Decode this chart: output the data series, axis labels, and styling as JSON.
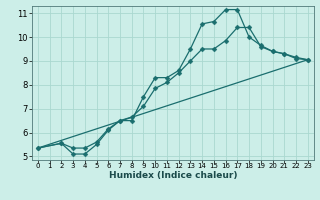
{
  "xlabel": "Humidex (Indice chaleur)",
  "background_color": "#cceee8",
  "grid_color": "#aad8d0",
  "line_color": "#1a6e6e",
  "xlim": [
    -0.5,
    23.5
  ],
  "ylim": [
    4.85,
    11.3
  ],
  "xticks": [
    0,
    1,
    2,
    3,
    4,
    5,
    6,
    7,
    8,
    9,
    10,
    11,
    12,
    13,
    14,
    15,
    16,
    17,
    18,
    19,
    20,
    21,
    22,
    23
  ],
  "yticks": [
    5,
    6,
    7,
    8,
    9,
    10,
    11
  ],
  "curve1_x": [
    0,
    2,
    3,
    4,
    5,
    6,
    7,
    8,
    9,
    10,
    11,
    12,
    13,
    14,
    15,
    16,
    17,
    18,
    19,
    20,
    21,
    22,
    23
  ],
  "curve1_y": [
    5.35,
    5.55,
    5.1,
    5.1,
    5.5,
    6.1,
    6.5,
    6.5,
    7.5,
    8.3,
    8.3,
    8.6,
    9.5,
    10.55,
    10.65,
    11.15,
    11.15,
    10.0,
    9.65,
    9.4,
    9.3,
    9.1,
    9.05
  ],
  "curve2_x": [
    0,
    2,
    3,
    4,
    5,
    6,
    7,
    8,
    9,
    10,
    11,
    12,
    13,
    14,
    15,
    16,
    17,
    18,
    19,
    20,
    21,
    22,
    23
  ],
  "curve2_y": [
    5.35,
    5.55,
    5.35,
    5.35,
    5.6,
    6.15,
    6.5,
    6.65,
    7.1,
    7.85,
    8.1,
    8.5,
    9.0,
    9.5,
    9.5,
    9.85,
    10.4,
    10.4,
    9.6,
    9.4,
    9.3,
    9.15,
    9.05
  ],
  "curve3_x": [
    0,
    23
  ],
  "curve3_y": [
    5.35,
    9.05
  ],
  "marker_size": 2.5,
  "line_width": 0.9,
  "xlabel_fontsize": 6.5,
  "tick_fontsize_x": 5.0,
  "tick_fontsize_y": 6.0
}
